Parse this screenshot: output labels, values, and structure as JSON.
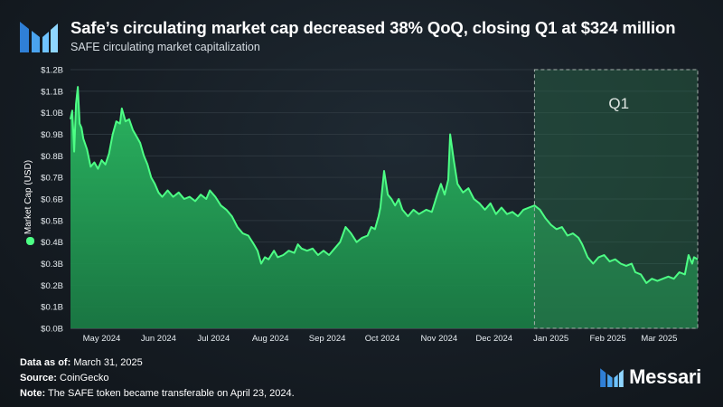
{
  "header": {
    "title": "Safe’s circulating market cap decreased 38% QoQ, closing Q1 at $324 million",
    "subtitle": "SAFE circulating market capitalization"
  },
  "chart_data": {
    "type": "area",
    "title": "Safe’s circulating market cap decreased 38% QoQ, closing Q1 at $324 million",
    "subtitle": "SAFE circulating market capitalization",
    "xlabel": "",
    "ylabel": "Market Cap (USD)",
    "ylim": [
      0,
      1.2
    ],
    "y_ticks": [
      "$0.0B",
      "$0.1B",
      "$0.2B",
      "$0.3B",
      "$0.4B",
      "$0.5B",
      "$0.6B",
      "$0.7B",
      "$0.8B",
      "$0.9B",
      "$1.0B",
      "$1.1B",
      "$1.2B"
    ],
    "x_ticks": [
      "May 2024",
      "Jun 2024",
      "Jul 2024",
      "Aug 2024",
      "Sep 2024",
      "Oct 2024",
      "Nov 2024",
      "Dec 2024",
      "Jan 2025",
      "Feb 2025",
      "Mar 2025"
    ],
    "x_range": [
      "2024-04-23",
      "2025-03-31"
    ],
    "grid": true,
    "legend": "left",
    "highlight": {
      "label": "Q1",
      "start": "2025-01-01",
      "end": "2025-03-31"
    },
    "colors": {
      "line": "#4dff85",
      "fill": "#1f9a55",
      "highlight_border": "#9aa5a0"
    },
    "series": [
      {
        "name": "Market Cap (USD)",
        "points": [
          [
            "2024-04-23",
            0.97
          ],
          [
            "2024-04-24",
            1.01
          ],
          [
            "2024-04-25",
            0.82
          ],
          [
            "2024-04-26",
            1.04
          ],
          [
            "2024-04-27",
            1.12
          ],
          [
            "2024-04-28",
            0.95
          ],
          [
            "2024-04-29",
            0.93
          ],
          [
            "2024-04-30",
            0.88
          ],
          [
            "2024-05-02",
            0.83
          ],
          [
            "2024-05-04",
            0.75
          ],
          [
            "2024-05-06",
            0.77
          ],
          [
            "2024-05-08",
            0.74
          ],
          [
            "2024-05-10",
            0.78
          ],
          [
            "2024-05-12",
            0.76
          ],
          [
            "2024-05-14",
            0.81
          ],
          [
            "2024-05-16",
            0.9
          ],
          [
            "2024-05-18",
            0.96
          ],
          [
            "2024-05-20",
            0.95
          ],
          [
            "2024-05-21",
            1.02
          ],
          [
            "2024-05-23",
            0.96
          ],
          [
            "2024-05-25",
            0.97
          ],
          [
            "2024-05-27",
            0.92
          ],
          [
            "2024-05-29",
            0.89
          ],
          [
            "2024-05-31",
            0.86
          ],
          [
            "2024-06-02",
            0.8
          ],
          [
            "2024-06-04",
            0.76
          ],
          [
            "2024-06-06",
            0.7
          ],
          [
            "2024-06-08",
            0.67
          ],
          [
            "2024-06-10",
            0.63
          ],
          [
            "2024-06-12",
            0.61
          ],
          [
            "2024-06-15",
            0.64
          ],
          [
            "2024-06-18",
            0.61
          ],
          [
            "2024-06-21",
            0.63
          ],
          [
            "2024-06-24",
            0.6
          ],
          [
            "2024-06-27",
            0.61
          ],
          [
            "2024-06-30",
            0.59
          ],
          [
            "2024-07-03",
            0.62
          ],
          [
            "2024-07-06",
            0.6
          ],
          [
            "2024-07-08",
            0.64
          ],
          [
            "2024-07-11",
            0.61
          ],
          [
            "2024-07-14",
            0.57
          ],
          [
            "2024-07-17",
            0.55
          ],
          [
            "2024-07-20",
            0.52
          ],
          [
            "2024-07-23",
            0.47
          ],
          [
            "2024-07-26",
            0.44
          ],
          [
            "2024-07-29",
            0.43
          ],
          [
            "2024-08-01",
            0.39
          ],
          [
            "2024-08-03",
            0.36
          ],
          [
            "2024-08-05",
            0.3
          ],
          [
            "2024-08-07",
            0.33
          ],
          [
            "2024-08-09",
            0.32
          ],
          [
            "2024-08-12",
            0.36
          ],
          [
            "2024-08-14",
            0.33
          ],
          [
            "2024-08-17",
            0.34
          ],
          [
            "2024-08-20",
            0.36
          ],
          [
            "2024-08-23",
            0.35
          ],
          [
            "2024-08-25",
            0.39
          ],
          [
            "2024-08-27",
            0.37
          ],
          [
            "2024-08-30",
            0.36
          ],
          [
            "2024-09-02",
            0.37
          ],
          [
            "2024-09-05",
            0.34
          ],
          [
            "2024-09-08",
            0.36
          ],
          [
            "2024-09-11",
            0.34
          ],
          [
            "2024-09-14",
            0.37
          ],
          [
            "2024-09-17",
            0.4
          ],
          [
            "2024-09-20",
            0.47
          ],
          [
            "2024-09-23",
            0.44
          ],
          [
            "2024-09-26",
            0.4
          ],
          [
            "2024-09-29",
            0.42
          ],
          [
            "2024-10-02",
            0.43
          ],
          [
            "2024-10-04",
            0.47
          ],
          [
            "2024-10-06",
            0.46
          ],
          [
            "2024-10-08",
            0.52
          ],
          [
            "2024-10-09",
            0.56
          ],
          [
            "2024-10-11",
            0.73
          ],
          [
            "2024-10-13",
            0.62
          ],
          [
            "2024-10-15",
            0.6
          ],
          [
            "2024-10-17",
            0.57
          ],
          [
            "2024-10-19",
            0.6
          ],
          [
            "2024-10-21",
            0.55
          ],
          [
            "2024-10-24",
            0.52
          ],
          [
            "2024-10-27",
            0.55
          ],
          [
            "2024-10-30",
            0.53
          ],
          [
            "2024-11-03",
            0.55
          ],
          [
            "2024-11-06",
            0.54
          ],
          [
            "2024-11-09",
            0.62
          ],
          [
            "2024-11-11",
            0.67
          ],
          [
            "2024-11-13",
            0.62
          ],
          [
            "2024-11-15",
            0.69
          ],
          [
            "2024-11-16",
            0.9
          ],
          [
            "2024-11-18",
            0.78
          ],
          [
            "2024-11-20",
            0.67
          ],
          [
            "2024-11-23",
            0.63
          ],
          [
            "2024-11-26",
            0.65
          ],
          [
            "2024-11-29",
            0.6
          ],
          [
            "2024-12-02",
            0.58
          ],
          [
            "2024-12-05",
            0.55
          ],
          [
            "2024-12-08",
            0.58
          ],
          [
            "2024-12-11",
            0.53
          ],
          [
            "2024-12-14",
            0.56
          ],
          [
            "2024-12-17",
            0.53
          ],
          [
            "2024-12-20",
            0.54
          ],
          [
            "2024-12-23",
            0.52
          ],
          [
            "2024-12-26",
            0.55
          ],
          [
            "2024-12-29",
            0.56
          ],
          [
            "2025-01-01",
            0.57
          ],
          [
            "2025-01-04",
            0.55
          ],
          [
            "2025-01-07",
            0.51
          ],
          [
            "2025-01-10",
            0.48
          ],
          [
            "2025-01-13",
            0.46
          ],
          [
            "2025-01-16",
            0.47
          ],
          [
            "2025-01-19",
            0.43
          ],
          [
            "2025-01-22",
            0.44
          ],
          [
            "2025-01-25",
            0.42
          ],
          [
            "2025-01-27",
            0.39
          ],
          [
            "2025-01-30",
            0.33
          ],
          [
            "2025-02-02",
            0.3
          ],
          [
            "2025-02-05",
            0.33
          ],
          [
            "2025-02-08",
            0.34
          ],
          [
            "2025-02-11",
            0.31
          ],
          [
            "2025-02-14",
            0.32
          ],
          [
            "2025-02-17",
            0.3
          ],
          [
            "2025-02-20",
            0.29
          ],
          [
            "2025-02-23",
            0.3
          ],
          [
            "2025-02-25",
            0.26
          ],
          [
            "2025-02-28",
            0.25
          ],
          [
            "2025-03-03",
            0.21
          ],
          [
            "2025-03-06",
            0.23
          ],
          [
            "2025-03-09",
            0.22
          ],
          [
            "2025-03-12",
            0.23
          ],
          [
            "2025-03-15",
            0.24
          ],
          [
            "2025-03-18",
            0.23
          ],
          [
            "2025-03-21",
            0.26
          ],
          [
            "2025-03-24",
            0.25
          ],
          [
            "2025-03-26",
            0.34
          ],
          [
            "2025-03-28",
            0.3
          ],
          [
            "2025-03-29",
            0.33
          ],
          [
            "2025-03-31",
            0.32
          ]
        ]
      }
    ]
  },
  "footer": {
    "data_as_of_label": "Data as of:",
    "data_as_of_value": "March 31, 2025",
    "source_label": "Source:",
    "source_value": "CoinGecko",
    "note_label": "Note:",
    "note_value": "The SAFE token became transferable on April 23, 2024."
  },
  "brand": {
    "name": "Messari",
    "logo_icon": "messari-logo-icon"
  }
}
